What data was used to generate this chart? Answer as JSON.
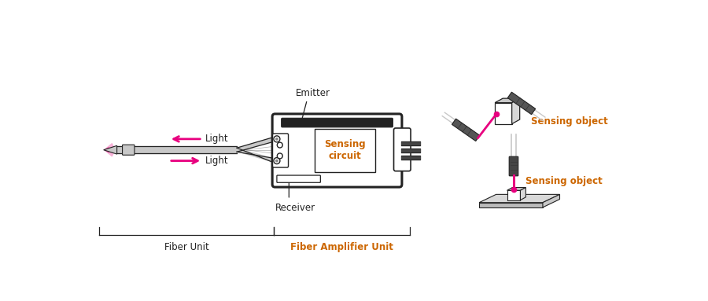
{
  "bg_color": "#ffffff",
  "magenta": "#e8007f",
  "dark_gray": "#222222",
  "mid_gray": "#888888",
  "light_gray": "#c8c8c8",
  "box_fill": "#f0f0f0",
  "sensing_text_color": "#cc6600",
  "label_color": "#444444",
  "labels": {
    "emitter": "Emitter",
    "receiver": "Receiver",
    "sensing_circuit": "Sensing\ncircuit",
    "fiber_unit": "Fiber Unit",
    "fiber_amp_unit": "Fiber Amplifier Unit",
    "light_top": "Light",
    "light_bottom": "Light",
    "sensing_object1": "Sensing object",
    "sensing_object2": "Sensing object"
  }
}
